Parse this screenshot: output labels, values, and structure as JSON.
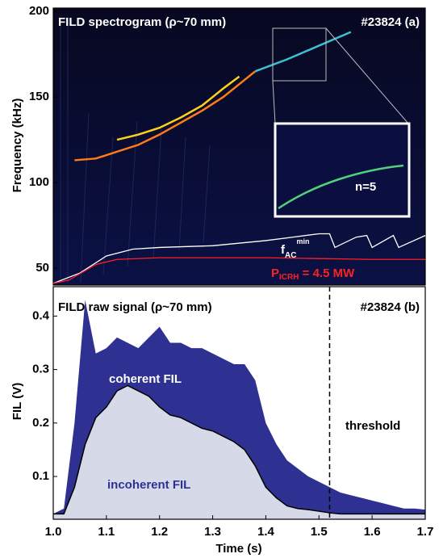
{
  "chart_data": [
    {
      "type": "spectrogram",
      "title": "FILD spectrogram (ρ~70 mm)",
      "tag": "#23824  (a)",
      "y_label": "Frequency (kHz)",
      "xlim": [
        1.0,
        1.7
      ],
      "ylim": [
        40,
        202
      ],
      "yticks": [
        50,
        100,
        150,
        200
      ],
      "modes": [
        {
          "color": "#ff7a1a",
          "x": [
            1.04,
            1.08,
            1.12,
            1.16,
            1.2,
            1.24,
            1.28,
            1.32,
            1.36,
            1.38
          ],
          "values": [
            113,
            114,
            118,
            122,
            128,
            135,
            142,
            150,
            160,
            165
          ]
        },
        {
          "color": "#ffd21a",
          "x": [
            1.12,
            1.16,
            1.2,
            1.24,
            1.28,
            1.32,
            1.35
          ],
          "values": [
            125,
            128,
            132,
            138,
            145,
            155,
            162
          ]
        },
        {
          "color": "#3fc0d0",
          "x": [
            1.38,
            1.44,
            1.5,
            1.56
          ],
          "values": [
            165,
            172,
            180,
            188
          ]
        }
      ],
      "series": [
        {
          "label": {
            "main": "f",
            "sub": "AC",
            "sup": "min"
          },
          "color": "#ffffff",
          "x": [
            1.0,
            1.05,
            1.1,
            1.15,
            1.2,
            1.3,
            1.4,
            1.45,
            1.5,
            1.52,
            1.53,
            1.57,
            1.59,
            1.6,
            1.64,
            1.65,
            1.7
          ],
          "values": [
            41,
            47,
            57,
            61,
            62,
            63,
            66,
            68,
            70,
            70,
            62,
            68,
            69,
            62,
            69,
            62,
            69
          ]
        },
        {
          "label": {
            "main": "P",
            "sub": "ICRH",
            "rest": " = 4.5 MW"
          },
          "color": "#ff2020",
          "x": [
            1.0,
            1.03,
            1.08,
            1.12,
            1.2,
            1.4,
            1.6,
            1.7
          ],
          "values": [
            41,
            43,
            52,
            55,
            56,
            56,
            55,
            55
          ]
        }
      ],
      "inset_label": "n=5"
    },
    {
      "type": "area",
      "title": "FILD raw signal (ρ~70 mm)",
      "tag": "#23824  (b)",
      "y_label": "FIL (V)",
      "x_label": "Time (s)",
      "xlim": [
        1.0,
        1.7
      ],
      "ylim": [
        0.02,
        0.455
      ],
      "xticks": [
        {
          "value": 1,
          "label": "1.0"
        },
        1.1,
        1.2,
        1.3,
        1.4,
        1.5,
        1.6,
        1.7
      ],
      "yticks": [
        0.1,
        0.2,
        0.3,
        0.4
      ],
      "x": [
        1.0,
        1.02,
        1.04,
        1.06,
        1.08,
        1.1,
        1.12,
        1.14,
        1.16,
        1.18,
        1.2,
        1.22,
        1.24,
        1.26,
        1.28,
        1.3,
        1.32,
        1.34,
        1.36,
        1.38,
        1.4,
        1.42,
        1.44,
        1.46,
        1.48,
        1.5,
        1.52,
        1.54,
        1.56,
        1.58,
        1.6,
        1.62,
        1.64,
        1.66,
        1.68,
        1.7
      ],
      "series": [
        {
          "name": "incoherent FIL",
          "color": "#d5d9e8",
          "line_color": "#000000",
          "values": [
            0.03,
            0.03,
            0.08,
            0.16,
            0.21,
            0.23,
            0.26,
            0.27,
            0.26,
            0.25,
            0.23,
            0.215,
            0.21,
            0.2,
            0.19,
            0.185,
            0.175,
            0.165,
            0.15,
            0.12,
            0.08,
            0.06,
            0.045,
            0.04,
            0.038,
            0.035,
            0.032,
            0.03,
            0.03,
            0.03,
            0.03,
            0.03,
            0.03,
            0.03,
            0.03,
            0.03
          ]
        },
        {
          "name": "coherent FIL",
          "color": "#2e3192",
          "values": [
            0,
            0.01,
            0.12,
            0.27,
            0.12,
            0.11,
            0.1,
            0.08,
            0.08,
            0.11,
            0.15,
            0.135,
            0.14,
            0.14,
            0.15,
            0.145,
            0.145,
            0.145,
            0.16,
            0.16,
            0.12,
            0.1,
            0.085,
            0.075,
            0.062,
            0.055,
            0.048,
            0.04,
            0.035,
            0.03,
            0.025,
            0.02,
            0.015,
            0.01,
            0.01,
            0.008
          ]
        }
      ],
      "threshold": {
        "x": 1.52,
        "label": "threshold"
      }
    }
  ]
}
